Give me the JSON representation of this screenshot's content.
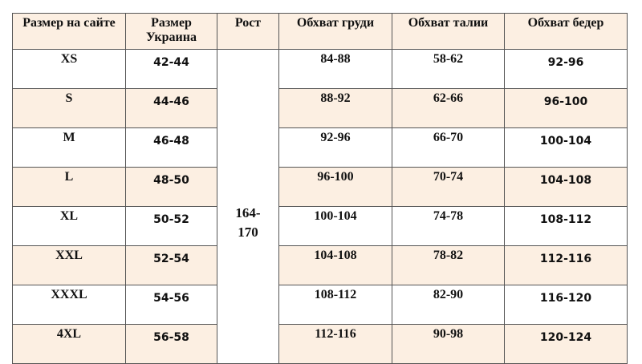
{
  "headers": [
    "Размер на сайте",
    "Размер Украина",
    "Рост",
    "Обхват груди",
    "Обхват талии",
    "Обхват бедер"
  ],
  "height_value": "164-170",
  "rows": [
    {
      "site": "XS",
      "ua": "42-44",
      "chest": "84-88",
      "waist": "58-62",
      "hips": "92-96"
    },
    {
      "site": "S",
      "ua": "44-46",
      "chest": "88-92",
      "waist": "62-66",
      "hips": "96-100"
    },
    {
      "site": "M",
      "ua": "46-48",
      "chest": "92-96",
      "waist": "66-70",
      "hips": "100-104"
    },
    {
      "site": "L",
      "ua": "48-50",
      "chest": "96-100",
      "waist": "70-74",
      "hips": "104-108"
    },
    {
      "site": "XL",
      "ua": "50-52",
      "chest": "100-104",
      "waist": "74-78",
      "hips": "108-112"
    },
    {
      "site": "XXL",
      "ua": "52-54",
      "chest": "104-108",
      "waist": "78-82",
      "hips": "112-116"
    },
    {
      "site": "XXXL",
      "ua": "54-56",
      "chest": "108-112",
      "waist": "82-90",
      "hips": "116-120"
    },
    {
      "site": "4XL",
      "ua": "56-58",
      "chest": "112-116",
      "waist": "90-98",
      "hips": "120-124"
    }
  ],
  "colors": {
    "row_alt": "#fcefe2",
    "border": "#555555"
  }
}
